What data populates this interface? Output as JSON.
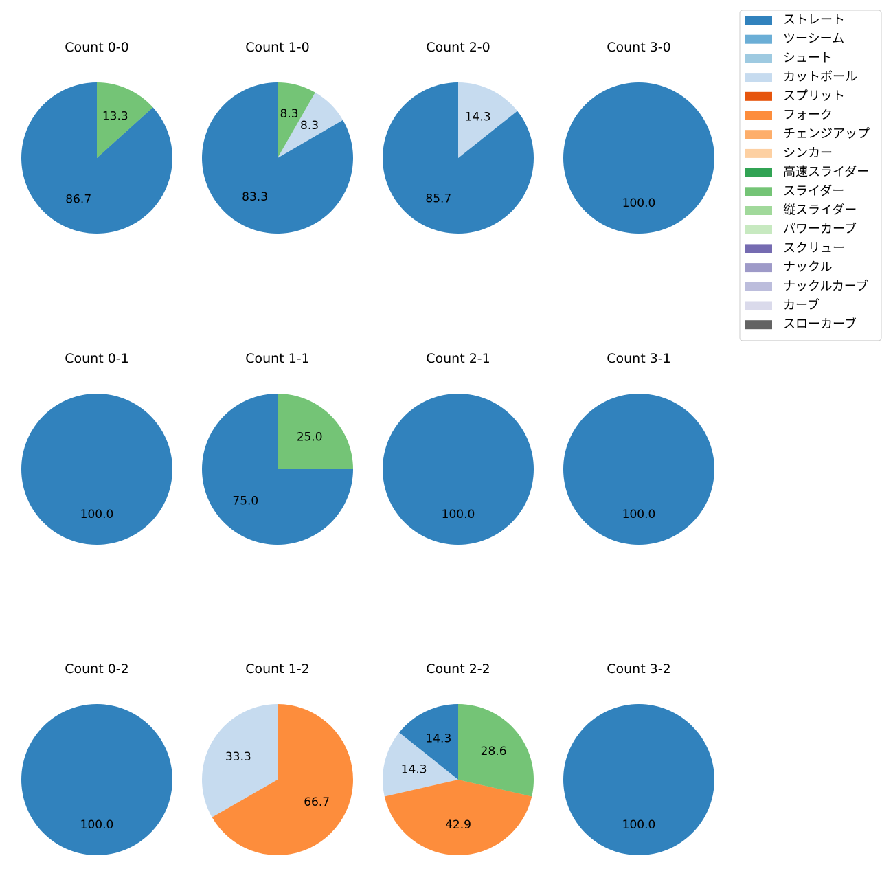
{
  "chart_data": {
    "type": "pie",
    "legend": {
      "placement": "top-right",
      "entries": [
        {
          "name": "ストレート",
          "color": "#3182bd"
        },
        {
          "name": "ツーシーム",
          "color": "#6baed6"
        },
        {
          "name": "シュート",
          "color": "#9ecae1"
        },
        {
          "name": "カットボール",
          "color": "#c6dbef"
        },
        {
          "name": "スプリット",
          "color": "#e6550d"
        },
        {
          "name": "フォーク",
          "color": "#fd8d3c"
        },
        {
          "name": "チェンジアップ",
          "color": "#fdae6b"
        },
        {
          "name": "シンカー",
          "color": "#fdd0a2"
        },
        {
          "name": "高速スライダー",
          "color": "#31a354"
        },
        {
          "name": "スライダー",
          "color": "#74c476"
        },
        {
          "name": "縦スライダー",
          "color": "#a1d99b"
        },
        {
          "name": "パワーカーブ",
          "color": "#c7e9c0"
        },
        {
          "name": "スクリュー",
          "color": "#756bb1"
        },
        {
          "name": "ナックル",
          "color": "#9e9ac8"
        },
        {
          "name": "ナックルカーブ",
          "color": "#bcbddc"
        },
        {
          "name": "カーブ",
          "color": "#dadaeb"
        },
        {
          "name": "スローカーブ",
          "color": "#636363"
        }
      ]
    },
    "charts": [
      {
        "title": "Count 0-0",
        "slices": [
          {
            "pitch": "ストレート",
            "value": 86.7,
            "label": "86.7"
          },
          {
            "pitch": "スライダー",
            "value": 13.3,
            "label": "13.3"
          }
        ]
      },
      {
        "title": "Count 1-0",
        "slices": [
          {
            "pitch": "ストレート",
            "value": 83.3,
            "label": "83.3"
          },
          {
            "pitch": "カットボール",
            "value": 8.3,
            "label": "8.3"
          },
          {
            "pitch": "スライダー",
            "value": 8.3,
            "label": "8.3"
          }
        ]
      },
      {
        "title": "Count 2-0",
        "slices": [
          {
            "pitch": "ストレート",
            "value": 85.7,
            "label": "85.7"
          },
          {
            "pitch": "カットボール",
            "value": 14.3,
            "label": "14.3"
          }
        ]
      },
      {
        "title": "Count 3-0",
        "slices": [
          {
            "pitch": "ストレート",
            "value": 100.0,
            "label": "100.0"
          }
        ]
      },
      {
        "title": "Count 0-1",
        "slices": [
          {
            "pitch": "ストレート",
            "value": 100.0,
            "label": "100.0"
          }
        ]
      },
      {
        "title": "Count 1-1",
        "slices": [
          {
            "pitch": "ストレート",
            "value": 75.0,
            "label": "75.0"
          },
          {
            "pitch": "スライダー",
            "value": 25.0,
            "label": "25.0"
          }
        ]
      },
      {
        "title": "Count 2-1",
        "slices": [
          {
            "pitch": "ストレート",
            "value": 100.0,
            "label": "100.0"
          }
        ]
      },
      {
        "title": "Count 3-1",
        "slices": [
          {
            "pitch": "ストレート",
            "value": 100.0,
            "label": "100.0"
          }
        ]
      },
      {
        "title": "Count 0-2",
        "slices": [
          {
            "pitch": "ストレート",
            "value": 100.0,
            "label": "100.0"
          }
        ]
      },
      {
        "title": "Count 1-2",
        "slices": [
          {
            "pitch": "カットボール",
            "value": 33.3,
            "label": "33.3"
          },
          {
            "pitch": "フォーク",
            "value": 66.7,
            "label": "66.7"
          }
        ]
      },
      {
        "title": "Count 2-2",
        "slices": [
          {
            "pitch": "ストレート",
            "value": 14.3,
            "label": "14.3"
          },
          {
            "pitch": "カットボール",
            "value": 14.3,
            "label": "14.3"
          },
          {
            "pitch": "フォーク",
            "value": 42.9,
            "label": "42.9"
          },
          {
            "pitch": "スライダー",
            "value": 28.6,
            "label": "28.6"
          }
        ]
      },
      {
        "title": "Count 3-2",
        "slices": [
          {
            "pitch": "ストレート",
            "value": 100.0,
            "label": "100.0"
          }
        ]
      }
    ]
  }
}
